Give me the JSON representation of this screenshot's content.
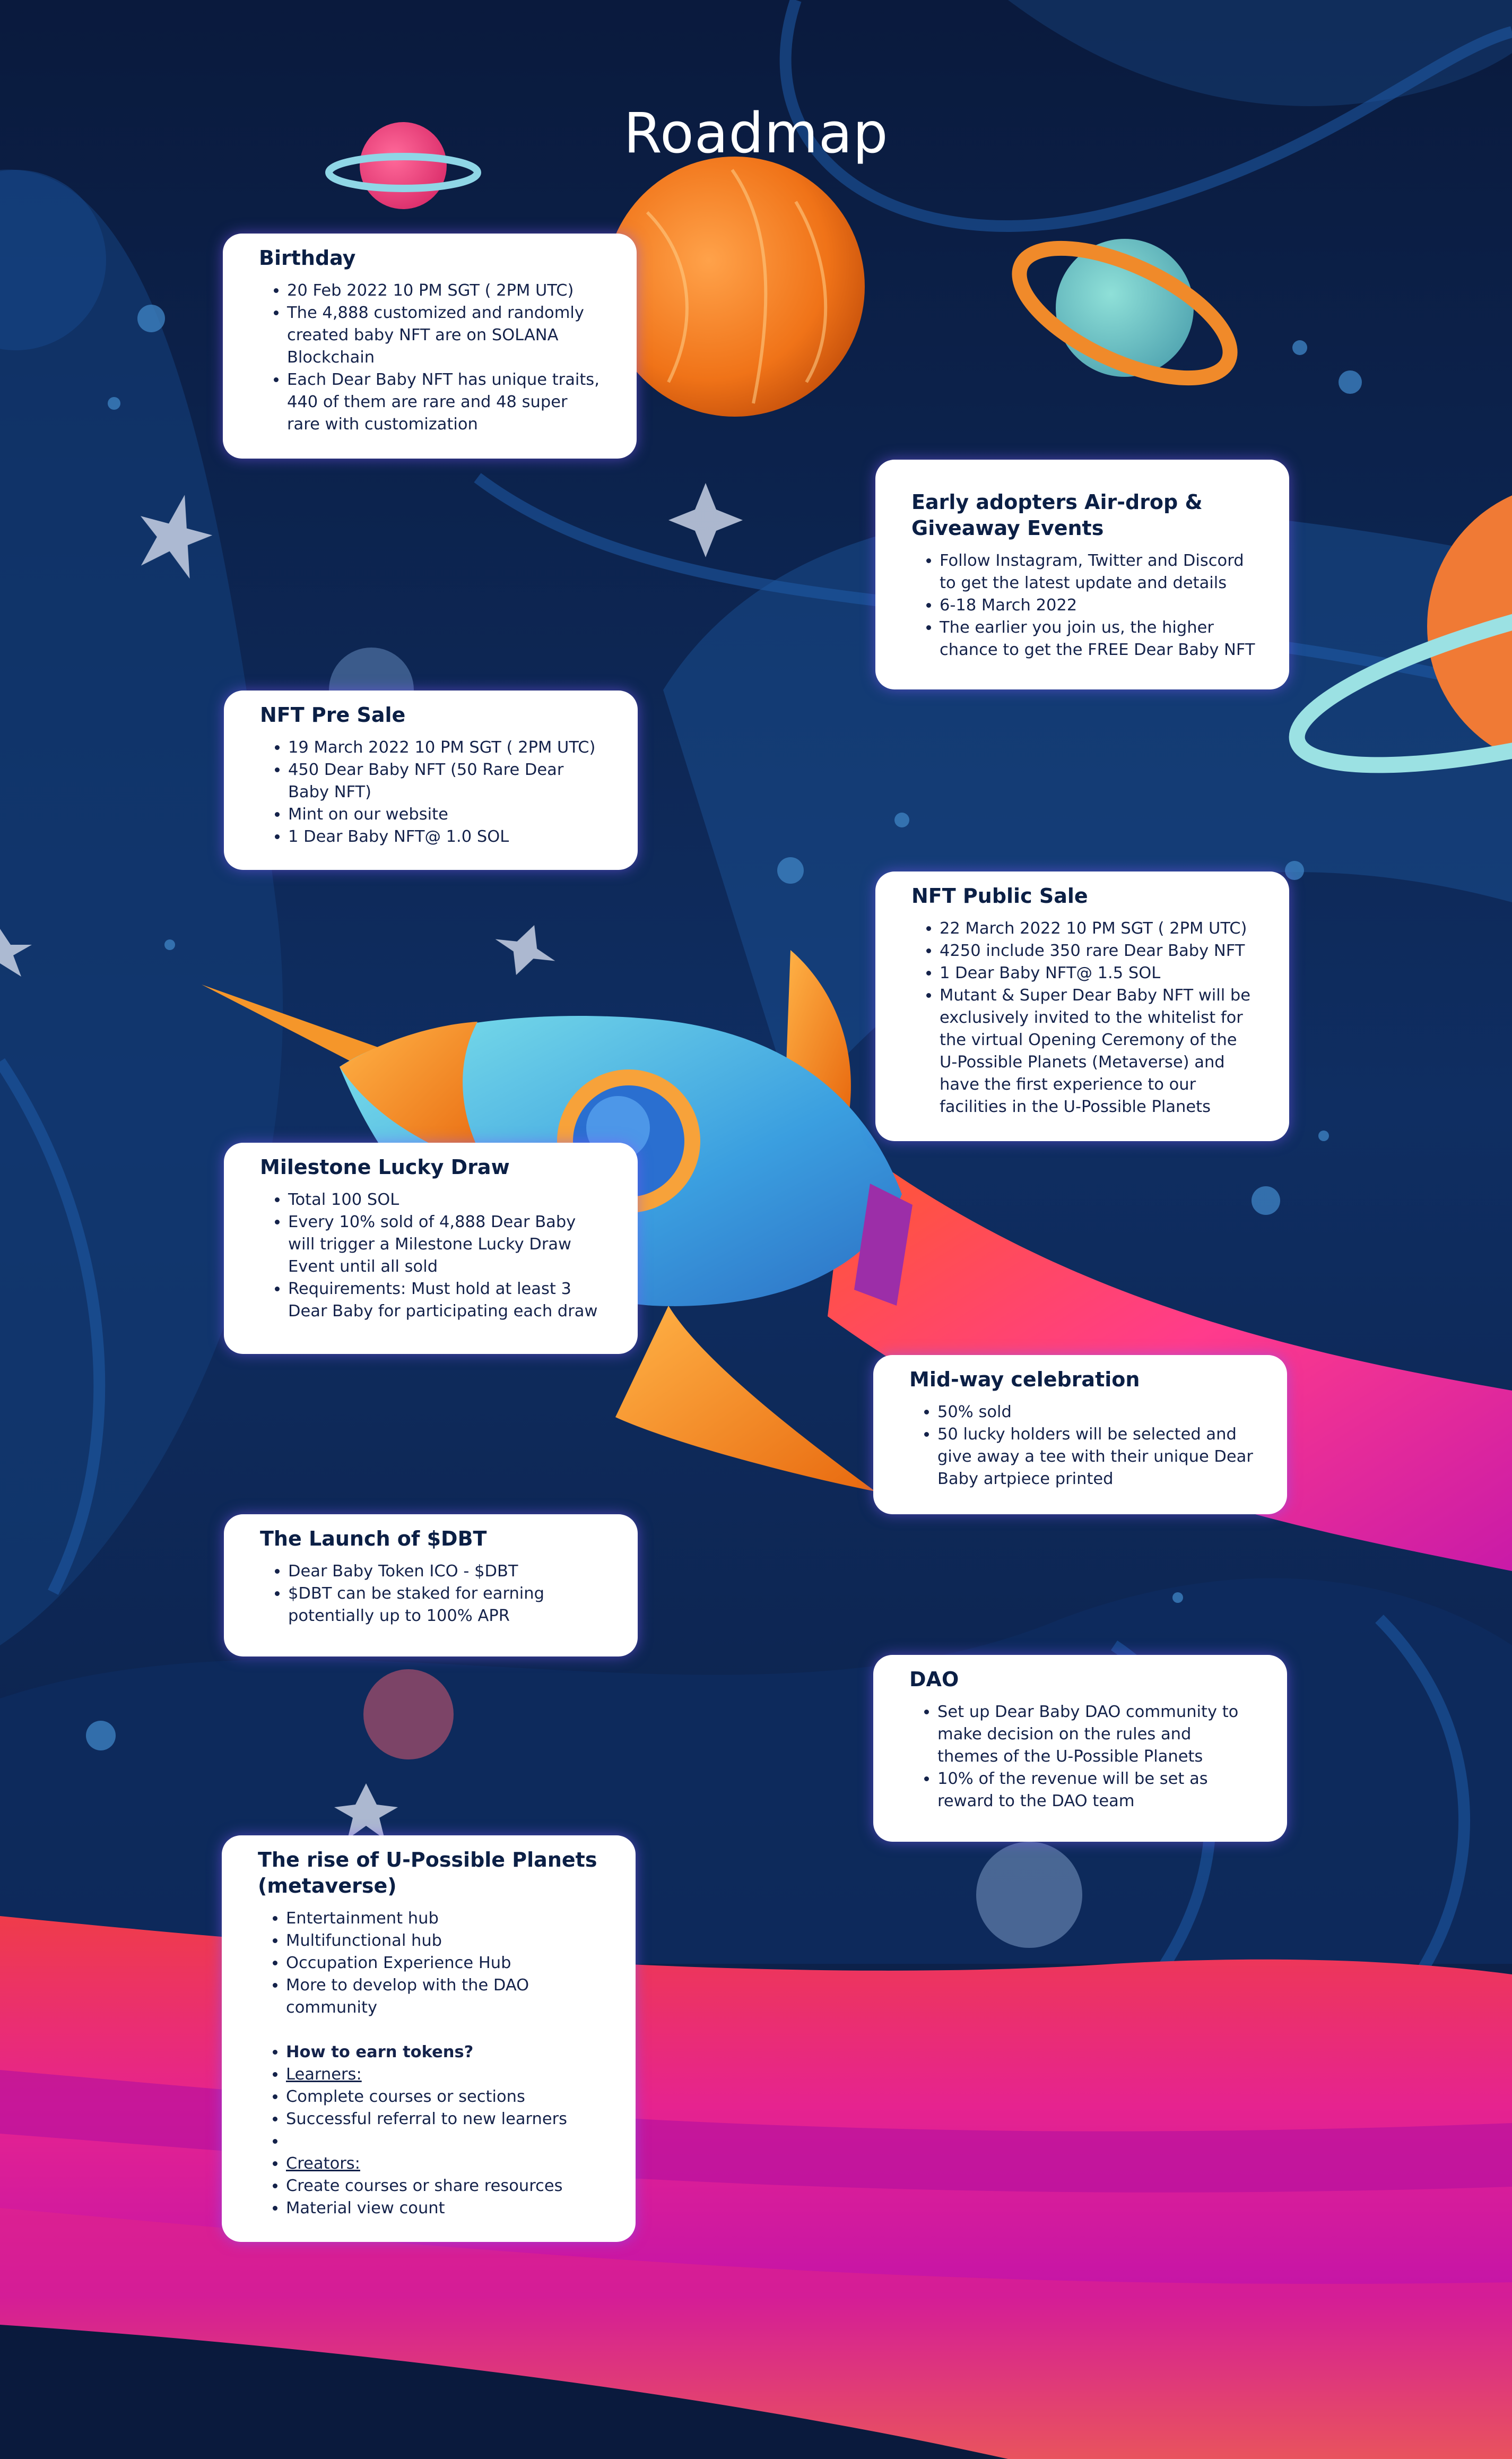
{
  "page": {
    "title": "Roadmap"
  },
  "colors": {
    "background": "#0b1f45",
    "card_text": "#0b1f45",
    "card_background": "#ffffff",
    "card_glow": "#825aff"
  },
  "milestones": [
    {
      "title": "Birthday",
      "items": [
        "20 Feb 2022 10 PM SGT ( 2PM UTC)",
        "The 4,888 customized and randomly created baby NFT are on SOLANA Blockchain",
        "Each Dear Baby NFT has unique traits, 440 of them are rare and 48 super rare with customization"
      ]
    },
    {
      "title": "Early adopters Air-drop & Giveaway Events",
      "items": [
        "Follow Instagram, Twitter and Discord to get the latest update and details",
        "6-18 March 2022",
        "The earlier you join us, the higher chance to get the FREE Dear Baby NFT"
      ]
    },
    {
      "title": "NFT Pre Sale",
      "items": [
        "19 March 2022 10 PM SGT ( 2PM UTC)",
        "450 Dear Baby NFT (50 Rare Dear Baby NFT)",
        "Mint on our website",
        "1 Dear Baby NFT@ 1.0 SOL"
      ]
    },
    {
      "title": "NFT Public Sale",
      "items": [
        "22 March 2022 10 PM SGT ( 2PM UTC)",
        "4250 include 350 rare Dear Baby NFT",
        "1 Dear Baby NFT@ 1.5 SOL",
        "Mutant & Super Dear Baby NFT will be exclusively invited to the whitelist for the virtual Opening Ceremony of the U-Possible Planets (Metaverse) and have the first experience to our facilities in the U-Possible Planets"
      ]
    },
    {
      "title": "Milestone Lucky Draw",
      "items": [
        "Total 100 SOL",
        "Every 10% sold of 4,888 Dear Baby will trigger a Milestone Lucky Draw Event until all sold",
        "Requirements: Must hold at least 3 Dear Baby for participating each draw"
      ]
    },
    {
      "title": "Mid-way celebration",
      "items": [
        "50% sold",
        "50 lucky holders will be selected and give away a tee with their unique Dear Baby artpiece printed"
      ]
    },
    {
      "title": "The Launch of $DBT",
      "items": [
        "Dear Baby Token ICO - $DBT",
        "$DBT can be staked for earning  potentially up to 100% APR"
      ]
    },
    {
      "title": "DAO",
      "items": [
        "Set up Dear Baby DAO community to make decision on the rules and themes of the U-Possible Planets",
        "10% of the revenue will be set as reward to the DAO team"
      ]
    },
    {
      "title": "The rise of U-Possible Planets (metaverse)",
      "items": [
        "Entertainment hub",
        "Multifunctional hub",
        "Occupation Experience Hub",
        "More to develop with the DAO community"
      ],
      "earn_heading": "How to earn tokens?",
      "learners_label": "Learners:",
      "learners_items": [
        "Complete courses or sections",
        "Successful referral to new learners"
      ],
      "creators_label": "Creators:",
      "creators_items": [
        "Create courses or share resources",
        "Material view count"
      ]
    }
  ]
}
